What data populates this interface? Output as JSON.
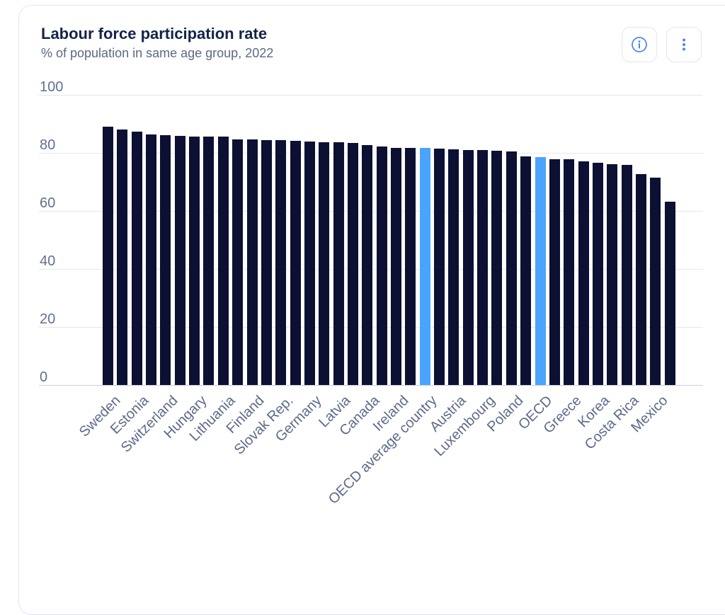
{
  "header": {
    "title": "Labour force participation rate",
    "subtitle": "% of population in same age group, 2022"
  },
  "toolbar": {
    "info_icon": "info-circle-icon",
    "menu_icon": "kebab-vertical-icon"
  },
  "colors": {
    "bar": "#0c1033",
    "bar_highlight": "#4aa4fd",
    "icon_accent": "#4b82f6",
    "grid_line": "#e4e7ef",
    "axis_line": "#c9d0e0",
    "title_text": "#142349",
    "subtitle_text": "#5b6986",
    "axis_text": "#636f90",
    "card_border": "#e3e6f1"
  },
  "chart_data": {
    "type": "bar",
    "title": "Labour force participation rate",
    "subtitle": "% of population in same age group, 2022",
    "year": "2022",
    "ylabel": "",
    "xlabel": "",
    "ylim": [
      0,
      100
    ],
    "yticks": [
      0,
      20,
      40,
      60,
      80,
      100
    ],
    "grid": true,
    "legend": "none",
    "note": "labels shown for every second bar; two aggregate bars highlighted in blue",
    "bars": [
      {
        "label": "Sweden",
        "value": 89.1,
        "highlight": false
      },
      {
        "label": "",
        "value": 88.1,
        "highlight": false
      },
      {
        "label": "Estonia",
        "value": 87.3,
        "highlight": false
      },
      {
        "label": "",
        "value": 86.3,
        "highlight": false
      },
      {
        "label": "Switzerland",
        "value": 86.0,
        "highlight": false
      },
      {
        "label": "",
        "value": 85.8,
        "highlight": false
      },
      {
        "label": "Hungary",
        "value": 85.7,
        "highlight": false
      },
      {
        "label": "",
        "value": 85.7,
        "highlight": false
      },
      {
        "label": "Lithuania",
        "value": 85.6,
        "highlight": false
      },
      {
        "label": "",
        "value": 84.7,
        "highlight": false
      },
      {
        "label": "Finland",
        "value": 84.6,
        "highlight": false
      },
      {
        "label": "",
        "value": 84.5,
        "highlight": false
      },
      {
        "label": "Slovak Rep.",
        "value": 84.3,
        "highlight": false
      },
      {
        "label": "",
        "value": 84.2,
        "highlight": false
      },
      {
        "label": "Germany",
        "value": 83.8,
        "highlight": false
      },
      {
        "label": "",
        "value": 83.7,
        "highlight": false
      },
      {
        "label": "Latvia",
        "value": 83.6,
        "highlight": false
      },
      {
        "label": "",
        "value": 83.4,
        "highlight": false
      },
      {
        "label": "Canada",
        "value": 82.8,
        "highlight": false
      },
      {
        "label": "",
        "value": 82.1,
        "highlight": false
      },
      {
        "label": "Ireland",
        "value": 81.8,
        "highlight": false
      },
      {
        "label": "",
        "value": 81.7,
        "highlight": false
      },
      {
        "label": "OECD average country",
        "value": 81.7,
        "highlight": true
      },
      {
        "label": "",
        "value": 81.5,
        "highlight": false
      },
      {
        "label": "Austria",
        "value": 81.3,
        "highlight": false
      },
      {
        "label": "",
        "value": 81.0,
        "highlight": false
      },
      {
        "label": "Luxembourg",
        "value": 80.9,
        "highlight": false
      },
      {
        "label": "",
        "value": 80.7,
        "highlight": false
      },
      {
        "label": "Poland",
        "value": 80.5,
        "highlight": false
      },
      {
        "label": "",
        "value": 78.8,
        "highlight": false
      },
      {
        "label": "OECD",
        "value": 78.6,
        "highlight": true
      },
      {
        "label": "",
        "value": 77.9,
        "highlight": false
      },
      {
        "label": "Greece",
        "value": 77.7,
        "highlight": false
      },
      {
        "label": "",
        "value": 77.0,
        "highlight": false
      },
      {
        "label": "Korea",
        "value": 76.5,
        "highlight": false
      },
      {
        "label": "",
        "value": 76.1,
        "highlight": false
      },
      {
        "label": "Costa Rica",
        "value": 75.9,
        "highlight": false
      },
      {
        "label": "",
        "value": 72.6,
        "highlight": false
      },
      {
        "label": "Mexico",
        "value": 71.4,
        "highlight": false
      },
      {
        "label": "",
        "value": 63.1,
        "highlight": false
      }
    ]
  }
}
